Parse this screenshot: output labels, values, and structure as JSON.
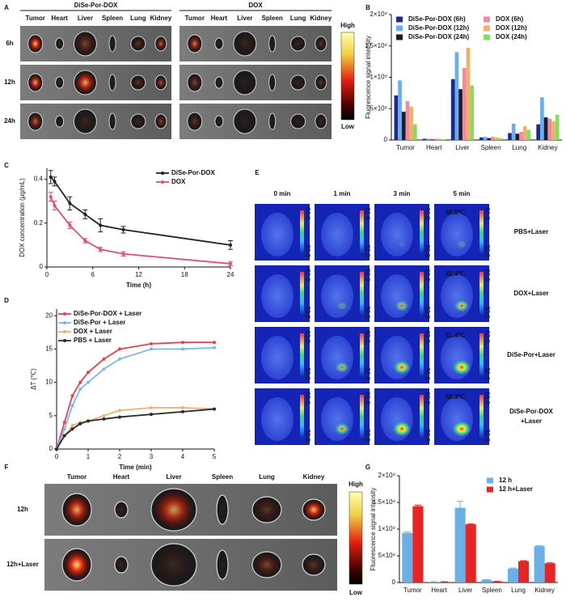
{
  "panel_a": {
    "panel": "A",
    "groups": [
      "DiSe-Por-DOX",
      "DOX"
    ],
    "organs": [
      "Tumor",
      "Heart",
      "Liver",
      "Spleen",
      "Lung",
      "Kidney"
    ],
    "rows": [
      "6h",
      "12h",
      "24h"
    ],
    "scale": [
      "High",
      "Low"
    ]
  },
  "panel_e": {
    "panel": "E",
    "columns": [
      "0 min",
      "1 min",
      "3 min",
      "5 min"
    ],
    "rows": [
      [
        "PBS+Laser"
      ],
      [
        "DOX+Laser"
      ],
      [
        "DiSe-Por+Laser"
      ],
      [
        "DiSe-Por-DOX",
        "+Laser"
      ]
    ],
    "temperatures": [
      "40.5℃",
      "42.4℃",
      "51.4℃",
      "52.3℃"
    ],
    "scale": [
      "60.0",
      "30.0"
    ]
  },
  "panel_f": {
    "panel": "F",
    "organs": [
      "Tumor",
      "Heart",
      "Liver",
      "Spleen",
      "Lung",
      "Kidney"
    ],
    "rows": [
      "12h",
      "12h+Laser"
    ],
    "scale": [
      "High",
      "Low"
    ]
  },
  "chart_data": [
    {
      "type": "bar",
      "panel": "B",
      "ylabel": "Fluorescence signal intensity",
      "legend": "top-left",
      "categories": [
        "Tumor",
        "Heart",
        "Liver",
        "Spleen",
        "Lung",
        "Kidney"
      ],
      "series": [
        {
          "name": "DiSe-Por-DOX (6h)",
          "color": "#1f2a86",
          "values": [
            710000000,
            20000000,
            970000000,
            40000000,
            110000000,
            250000000
          ]
        },
        {
          "name": "DiSe-Por-DOX (12h)",
          "color": "#6aaef0",
          "values": [
            950000000,
            20000000,
            1400000000,
            50000000,
            260000000,
            680000000
          ]
        },
        {
          "name": "DiSe-Por-DOX (24h)",
          "color": "#1c1c2c",
          "values": [
            450000000,
            10000000,
            810000000,
            30000000,
            100000000,
            360000000
          ]
        },
        {
          "name": "DOX (6h)",
          "color": "#f08aa2",
          "values": [
            620000000,
            20000000,
            1150000000,
            50000000,
            130000000,
            340000000
          ]
        },
        {
          "name": "DOX (12h)",
          "color": "#f2b06a",
          "values": [
            530000000,
            20000000,
            1470000000,
            40000000,
            220000000,
            300000000
          ]
        },
        {
          "name": "DOX (24h)",
          "color": "#7ee05c",
          "values": [
            250000000,
            10000000,
            870000000,
            30000000,
            160000000,
            400000000
          ]
        }
      ],
      "ylim": [
        0,
        2000000000
      ],
      "yticks": [
        0,
        {
          "value": 500000000,
          "label": "5×10⁸"
        },
        {
          "value": 1000000000,
          "label": "1×10⁹"
        },
        {
          "value": 1500000000,
          "label": "1.5×10⁹"
        },
        {
          "value": 2000000000,
          "label": "2×10⁹"
        }
      ]
    },
    {
      "type": "line",
      "panel": "C",
      "xlabel": "Time (h)",
      "ylabel": "DOX concentration (μg/mL)",
      "legend": "top-right",
      "x": [
        0.5,
        1,
        3,
        5,
        7,
        10,
        24
      ],
      "series": [
        {
          "name": "DiSe-Por-DOX",
          "color": "#222222",
          "values": [
            0.41,
            0.39,
            0.29,
            0.24,
            0.19,
            0.17,
            0.1
          ],
          "errors": [
            0.03,
            0.02,
            0.03,
            0.02,
            0.03,
            0.015,
            0.02
          ]
        },
        {
          "name": "DOX",
          "color": "#e0506e",
          "values": [
            0.32,
            0.28,
            0.19,
            0.12,
            0.08,
            0.06,
            0.015
          ],
          "errors": [
            0.02,
            0.02,
            0.015,
            0.01,
            0.01,
            0.01,
            0.01
          ]
        }
      ],
      "xlim": [
        0,
        24
      ],
      "xticks": [
        0,
        6,
        12,
        18,
        24
      ],
      "ylim": [
        0,
        0.45
      ],
      "yticks": [
        0,
        0.2,
        0.4
      ]
    },
    {
      "type": "line",
      "panel": "D",
      "xlabel": "Time (min)",
      "ylabel": "ΔT (℃)",
      "legend": "top-left",
      "x": [
        0,
        0.25,
        0.5,
        0.75,
        1,
        1.5,
        2,
        3,
        4,
        5
      ],
      "series": [
        {
          "name": "DiSe-Por-DOX + Laser",
          "color": "#e8404e",
          "values": [
            0,
            4,
            8,
            10,
            11.5,
            13.5,
            15,
            15.8,
            16,
            16
          ]
        },
        {
          "name": "DiSe-Por + Laser",
          "color": "#7cb8e8",
          "values": [
            0,
            3,
            6.5,
            9,
            10,
            12,
            13.5,
            15,
            15,
            15.2
          ]
        },
        {
          "name": "DOX + Laser",
          "color": "#f0b27a",
          "values": [
            0,
            2,
            3.5,
            4,
            4.2,
            5,
            5.8,
            6.2,
            6.2,
            6
          ]
        },
        {
          "name": "PBS + Laser",
          "color": "#2a2a2a",
          "values": [
            0,
            2,
            3,
            3.8,
            4.2,
            4.5,
            4.8,
            5.2,
            5.6,
            6
          ]
        }
      ],
      "xlim": [
        0,
        5
      ],
      "xticks": [
        0,
        1,
        2,
        3,
        4,
        5
      ],
      "ylim": [
        0,
        21
      ],
      "yticks": [
        0,
        5,
        10,
        15,
        20
      ]
    },
    {
      "type": "bar",
      "panel": "G",
      "ylabel": "Fluorescence signal intensity",
      "legend": "top-right",
      "categories": [
        "Tumor",
        "Heart",
        "Liver",
        "Spleen",
        "Lung",
        "Kidney"
      ],
      "series": [
        {
          "name": "12 h",
          "color": "#6ab0e8",
          "values": [
            930000000,
            10000000,
            1400000000,
            50000000,
            260000000,
            680000000
          ],
          "errors": [
            20000000,
            5000000,
            120000000,
            5000000,
            10000000,
            10000000
          ]
        },
        {
          "name": "12 h+Laser",
          "color": "#e82424",
          "values": [
            1430000000,
            10000000,
            1090000000,
            20000000,
            400000000,
            360000000
          ],
          "errors": [
            20000000,
            5000000,
            10000000,
            5000000,
            10000000,
            10000000
          ]
        }
      ],
      "ylim": [
        0,
        2000000000
      ],
      "yticks": [
        0,
        {
          "value": 500000000,
          "label": "5×10⁸"
        },
        {
          "value": 1000000000,
          "label": "1×10⁹"
        },
        {
          "value": 1500000000,
          "label": "1.5×10⁹"
        },
        {
          "value": 2000000000,
          "label": "2×10⁹"
        }
      ]
    }
  ]
}
